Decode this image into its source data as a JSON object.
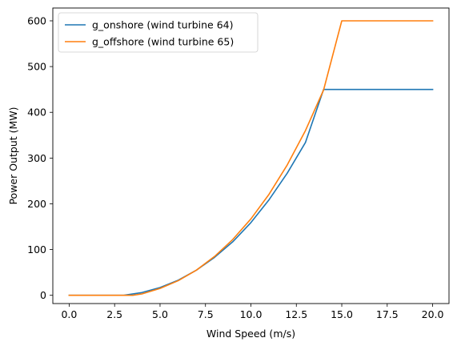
{
  "chart_data": {
    "type": "line",
    "xlabel": "Wind Speed (m/s)",
    "ylabel": "Power Output (MW)",
    "xlim": [
      -0.9,
      20.9
    ],
    "ylim": [
      -18,
      628
    ],
    "xticks": [
      0,
      2.5,
      5,
      7.5,
      10,
      12.5,
      15,
      17.5,
      20
    ],
    "xtick_labels": [
      "0.0",
      "2.5",
      "5.0",
      "7.5",
      "10.0",
      "12.5",
      "15.0",
      "17.5",
      "20.0"
    ],
    "yticks": [
      0,
      100,
      200,
      300,
      400,
      500,
      600
    ],
    "ytick_labels": [
      "0",
      "100",
      "200",
      "300",
      "400",
      "500",
      "600"
    ],
    "grid": false,
    "legend_position": "upper-left",
    "series": [
      {
        "name": "g_onshore (wind turbine 64)",
        "color": "#1f77b4",
        "x": [
          0,
          3,
          4,
          5,
          6,
          7,
          8,
          9,
          10,
          11,
          12,
          13,
          14,
          15,
          20
        ],
        "y": [
          0,
          0,
          6,
          17,
          33,
          55,
          83,
          117,
          159,
          209,
          267,
          334,
          450,
          450,
          450
        ]
      },
      {
        "name": "g_offshore (wind turbine 65)",
        "color": "#ff7f0e",
        "x": [
          0,
          3.5,
          4,
          5,
          6,
          7,
          8,
          9,
          10,
          11,
          12,
          13,
          14,
          15,
          20
        ],
        "y": [
          0,
          0,
          3,
          15,
          32,
          55,
          85,
          122,
          167,
          221,
          285,
          360,
          449,
          600,
          600
        ]
      }
    ]
  }
}
